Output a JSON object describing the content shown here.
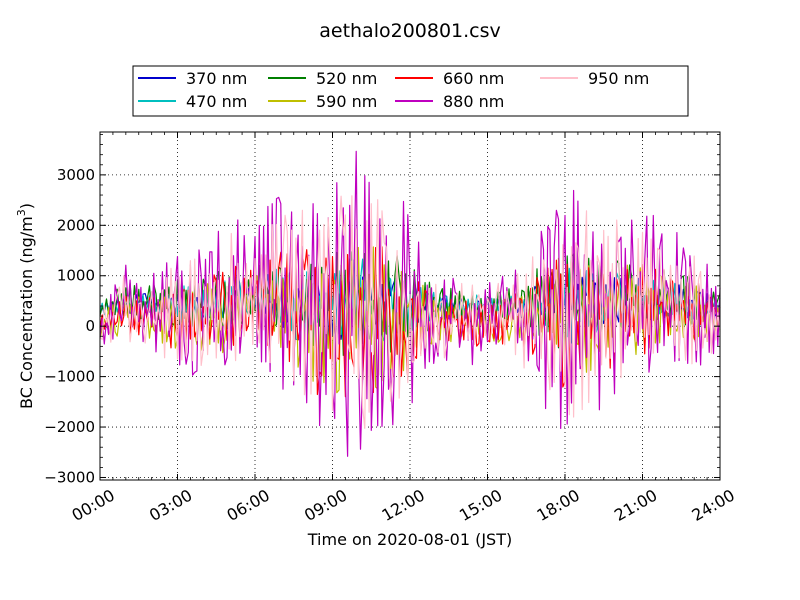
{
  "chart_data": {
    "type": "line",
    "title": "aethalo200801.csv",
    "xlabel": "Time on 2020-08-01 (JST)",
    "ylabel": "BC Concentration (ng/m",
    "ylabel_sup": "3",
    "ylabel_end": ")",
    "xlim": [
      0,
      24
    ],
    "ylim": [
      -3050,
      3850
    ],
    "x_ticks": [
      0,
      3,
      6,
      9,
      12,
      15,
      18,
      21,
      24
    ],
    "x_tick_labels": [
      "00:00",
      "03:00",
      "06:00",
      "09:00",
      "12:00",
      "15:00",
      "18:00",
      "21:00",
      "24:00"
    ],
    "y_ticks": [
      -3000,
      -2000,
      -1000,
      0,
      1000,
      2000,
      3000
    ],
    "y_tick_labels": [
      "−3000",
      "−2000",
      "−1000",
      "0",
      "1000",
      "2000",
      "3000"
    ],
    "grid": true,
    "legend_placement": "top-center",
    "sample_interval_minutes": 5,
    "series": [
      {
        "name": "370 nm",
        "color": "#0000cc",
        "amplitude": 0.25,
        "seed": 11
      },
      {
        "name": "470 nm",
        "color": "#00bfbf",
        "amplitude": 0.3,
        "seed": 23
      },
      {
        "name": "520 nm",
        "color": "#007f00",
        "amplitude": 0.4,
        "seed": 37
      },
      {
        "name": "590 nm",
        "color": "#bfbf00",
        "amplitude": 0.5,
        "seed": 41
      },
      {
        "name": "660 nm",
        "color": "#ff0000",
        "amplitude": 0.55,
        "seed": 53
      },
      {
        "name": "880 nm",
        "color": "#bf00bf",
        "amplitude": 1.0,
        "seed": 67
      },
      {
        "name": "950 nm",
        "color": "#ffc0cb",
        "amplitude": 0.85,
        "seed": 79
      }
    ],
    "envelope": {
      "hours": [
        0,
        1,
        2,
        3,
        4,
        5,
        6,
        7,
        8,
        9,
        10,
        11,
        12,
        13,
        14,
        15,
        16,
        17,
        18,
        19,
        20,
        21,
        22,
        23,
        24
      ],
      "max": [
        500,
        1300,
        1200,
        1500,
        1600,
        2300,
        2100,
        2700,
        2900,
        3100,
        3500,
        2900,
        2400,
        1000,
        1000,
        1000,
        1100,
        2100,
        2900,
        2700,
        2500,
        2400,
        2000,
        1700,
        800
      ],
      "min": [
        -500,
        -400,
        -600,
        -900,
        -1100,
        -1100,
        -500,
        -1400,
        -2600,
        -2700,
        -2700,
        -2500,
        -2100,
        -700,
        -900,
        -700,
        -600,
        -1500,
        -2400,
        -2000,
        -1400,
        -1100,
        -700,
        -900,
        -500
      ]
    }
  }
}
